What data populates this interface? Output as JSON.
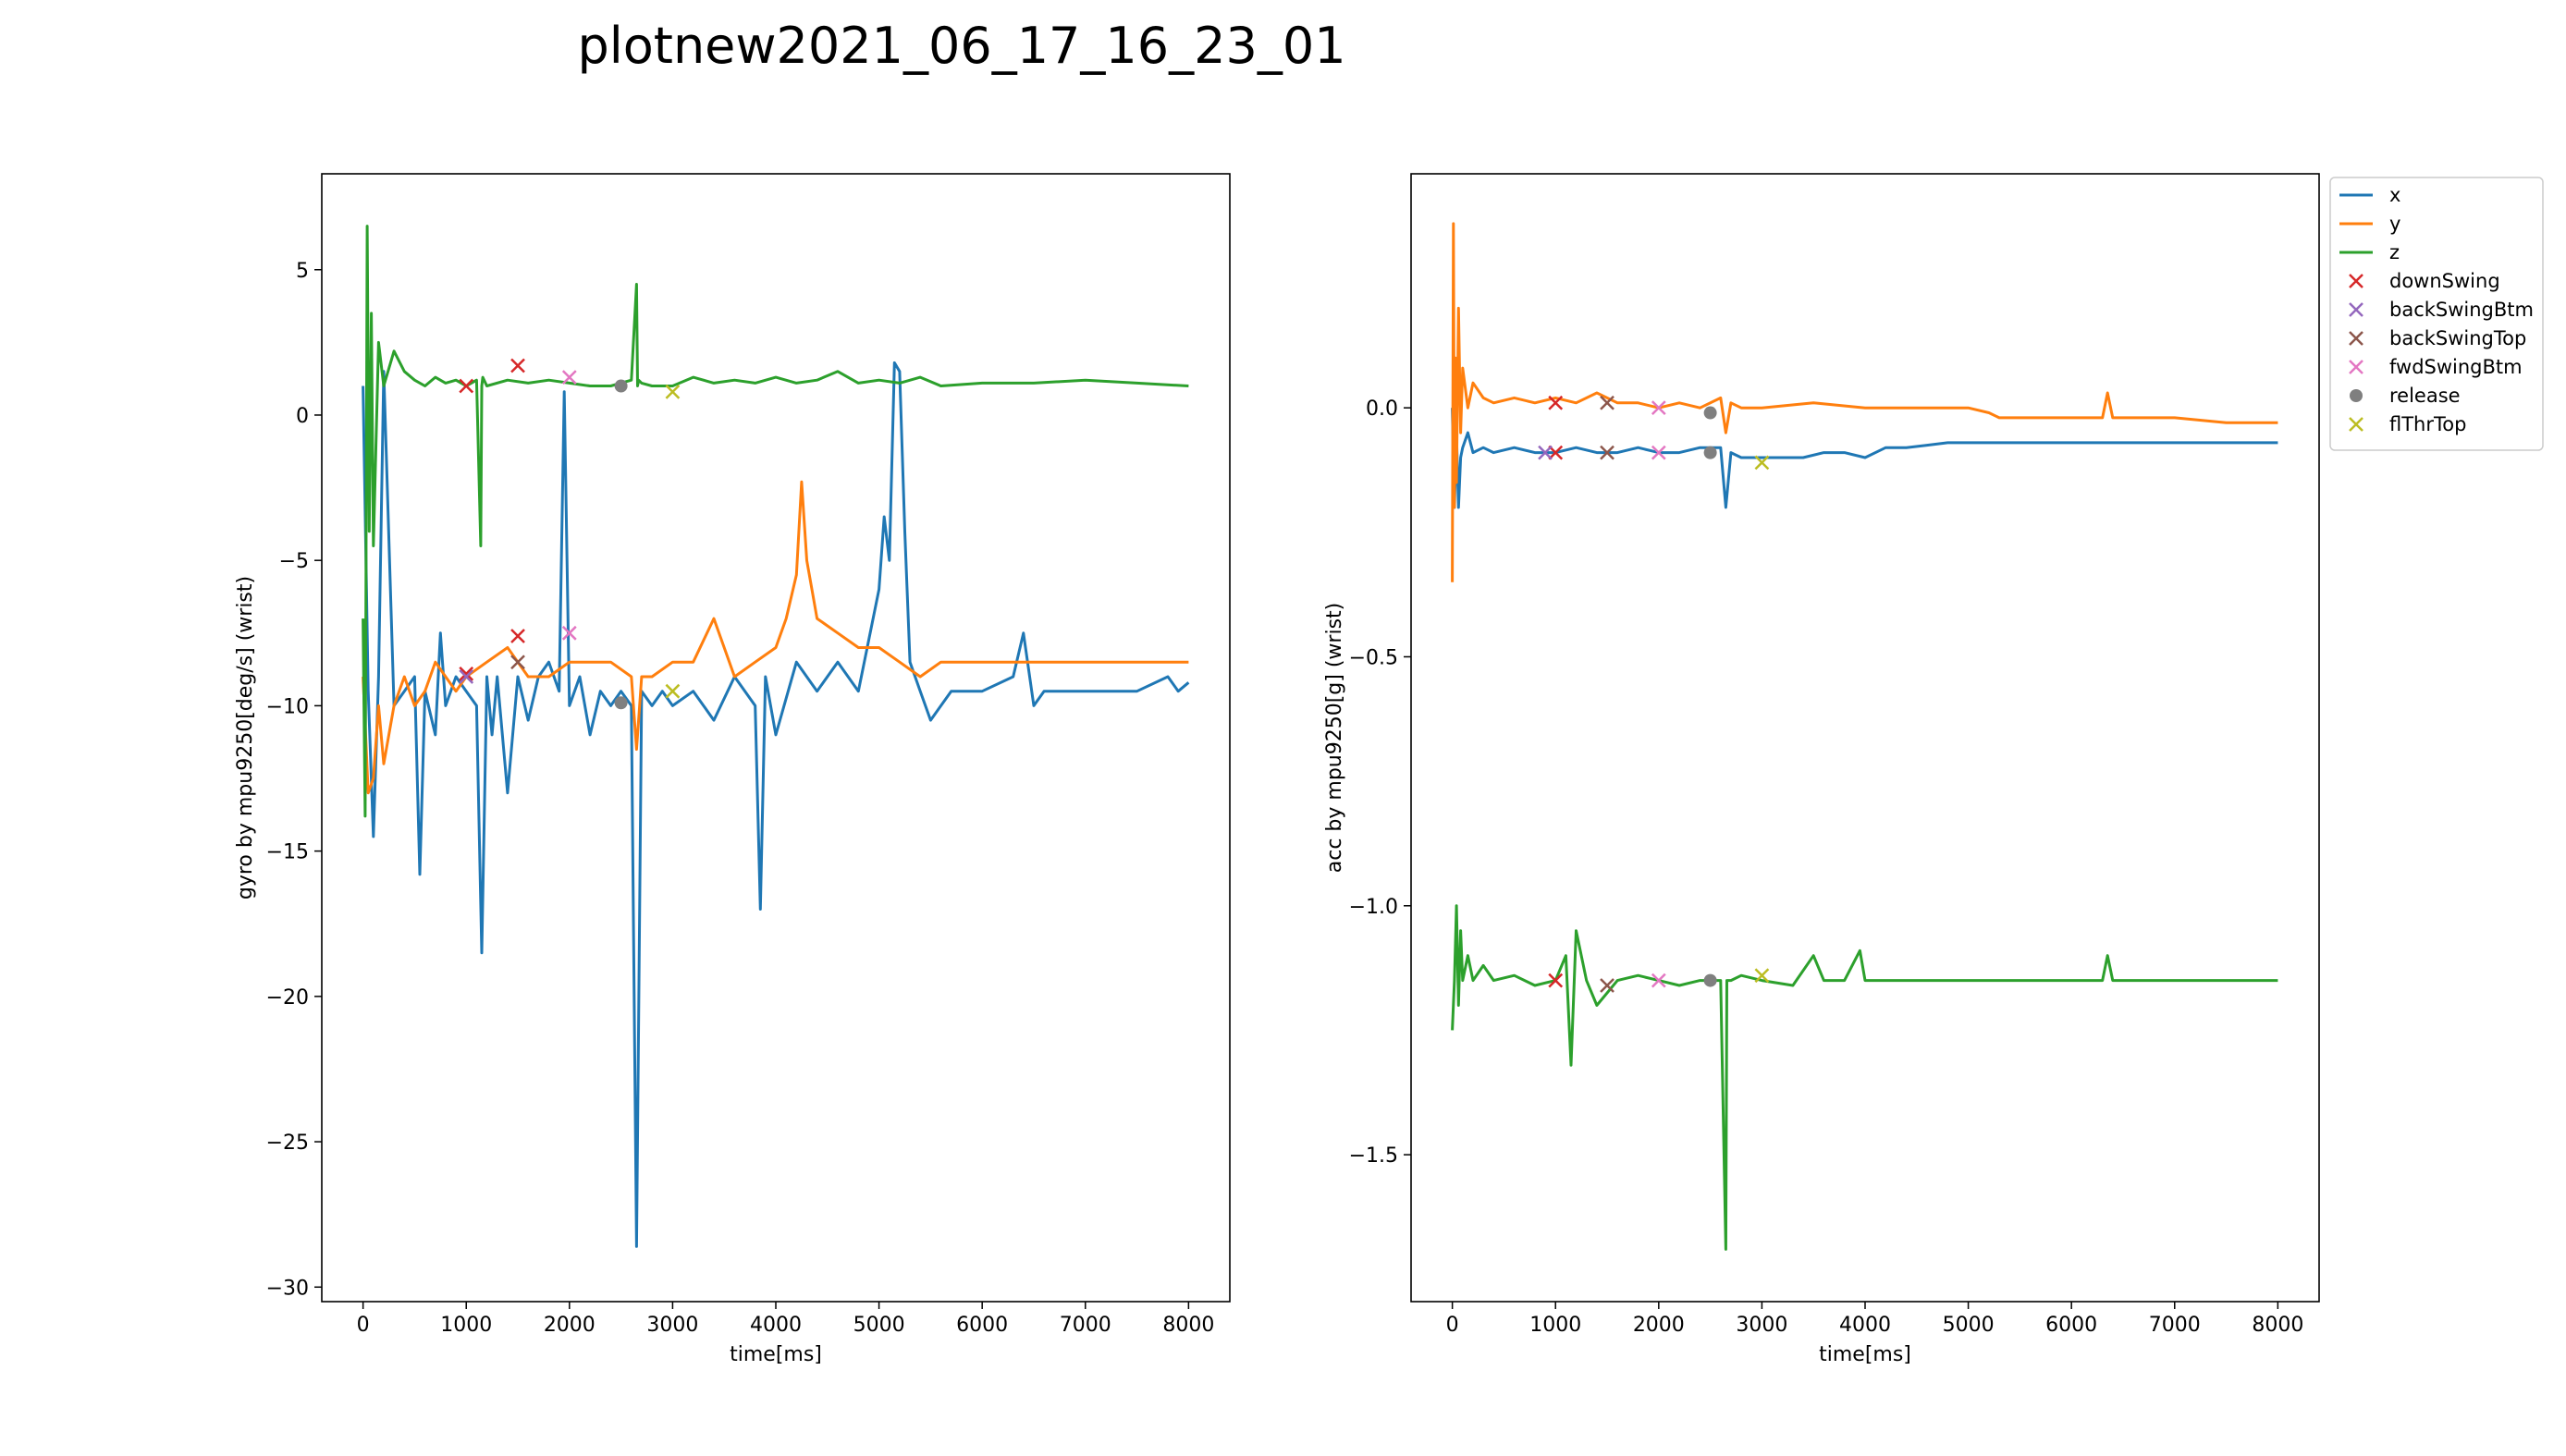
{
  "figure": {
    "title": "plotnew2021_06_17_16_23_01"
  },
  "legend": {
    "placement": "outside-right",
    "entries": [
      {
        "label": "x",
        "kind": "line",
        "color": "#1f77b4"
      },
      {
        "label": "y",
        "kind": "line",
        "color": "#ff7f0e"
      },
      {
        "label": "z",
        "kind": "line",
        "color": "#2ca02c"
      },
      {
        "label": "downSwing",
        "kind": "x",
        "color": "#d62728"
      },
      {
        "label": "backSwingBtm",
        "kind": "x",
        "color": "#9467bd"
      },
      {
        "label": "backSwingTop",
        "kind": "x",
        "color": "#8c564b"
      },
      {
        "label": "fwdSwingBtm",
        "kind": "x",
        "color": "#e377c2"
      },
      {
        "label": "release",
        "kind": "dot",
        "color": "#7f7f7f"
      },
      {
        "label": "flThrTop",
        "kind": "x",
        "color": "#bcbd22"
      }
    ]
  },
  "chart_data": [
    {
      "type": "line",
      "xlabel": "time[ms]",
      "ylabel": "gyro by mpu9250[deg/s] (wrist)",
      "xlim": [
        -400,
        8400
      ],
      "ylim": [
        -30.5,
        8.3
      ],
      "xticks": [
        0,
        1000,
        2000,
        3000,
        4000,
        5000,
        6000,
        7000,
        8000
      ],
      "yticks": [
        5,
        0,
        -5,
        -10,
        -15,
        -20,
        -25,
        -30
      ],
      "ytick_labels": [
        "5",
        "0",
        "−5",
        "−10",
        "−15",
        "−20",
        "−25",
        "−30"
      ],
      "grid": false,
      "series": [
        {
          "name": "x",
          "color": "#1f77b4",
          "x": [
            0,
            50,
            100,
            150,
            200,
            300,
            400,
            500,
            550,
            600,
            700,
            750,
            800,
            900,
            1000,
            1100,
            1150,
            1200,
            1250,
            1300,
            1400,
            1500,
            1600,
            1700,
            1800,
            1900,
            1950,
            2000,
            2100,
            2200,
            2300,
            2400,
            2500,
            2600,
            2650,
            2700,
            2800,
            2900,
            3000,
            3200,
            3400,
            3600,
            3800,
            3850,
            3900,
            4000,
            4200,
            4400,
            4600,
            4800,
            5000,
            5050,
            5100,
            5150,
            5200,
            5250,
            5300,
            5400,
            5500,
            5700,
            6000,
            6300,
            6400,
            6500,
            6600,
            6700,
            7000,
            7500,
            7800,
            7900,
            8000
          ],
          "y": [
            1,
            -9.5,
            -14.5,
            -9,
            1.5,
            -10,
            -9.5,
            -9,
            -15.8,
            -9.5,
            -11,
            -7.5,
            -10,
            -9,
            -9.5,
            -10,
            -18.5,
            -9,
            -11,
            -9,
            -13,
            -9,
            -10.5,
            -9,
            -8.5,
            -9.5,
            0.8,
            -10,
            -9,
            -11,
            -9.5,
            -10,
            -9.5,
            -10,
            -28.6,
            -9.5,
            -10,
            -9.5,
            -10,
            -9.5,
            -10.5,
            -9,
            -10,
            -17,
            -9,
            -11,
            -8.5,
            -9.5,
            -8.5,
            -9.5,
            -6,
            -3.5,
            -5,
            1.8,
            1.5,
            -4,
            -8.5,
            -9.5,
            -10.5,
            -9.5,
            -9.5,
            -9,
            -7.5,
            -10,
            -9.5,
            -9.5,
            -9.5,
            -9.5,
            -9,
            -9.5,
            -9.2
          ]
        },
        {
          "name": "y",
          "color": "#ff7f0e",
          "x": [
            0,
            50,
            100,
            150,
            200,
            300,
            400,
            500,
            600,
            700,
            800,
            900,
            1000,
            1200,
            1400,
            1600,
            1800,
            2000,
            2200,
            2400,
            2600,
            2650,
            2700,
            2800,
            3000,
            3200,
            3400,
            3600,
            3800,
            4000,
            4100,
            4200,
            4250,
            4300,
            4400,
            4600,
            4800,
            5000,
            5200,
            5400,
            5600,
            5800,
            6000,
            6500,
            7000,
            7500,
            7800,
            8000
          ],
          "y": [
            -9,
            -13,
            -12.5,
            -10,
            -12,
            -10,
            -9,
            -10,
            -9.5,
            -8.5,
            -9,
            -9.5,
            -9,
            -8.5,
            -8,
            -9,
            -9,
            -8.5,
            -8.5,
            -8.5,
            -9,
            -11.5,
            -9,
            -9,
            -8.5,
            -8.5,
            -7,
            -9,
            -8.5,
            -8,
            -7,
            -5.5,
            -2.3,
            -5,
            -7,
            -7.5,
            -8,
            -8,
            -8.5,
            -9,
            -8.5,
            -8.5,
            -8.5,
            -8.5,
            -8.5,
            -8.5,
            -8.5,
            -8.5
          ]
        },
        {
          "name": "z",
          "color": "#2ca02c",
          "x": [
            0,
            20,
            40,
            60,
            80,
            100,
            150,
            200,
            300,
            400,
            500,
            600,
            700,
            800,
            900,
            1000,
            1100,
            1140,
            1150,
            1160,
            1200,
            1400,
            1600,
            1800,
            2000,
            2200,
            2400,
            2600,
            2650,
            2660,
            2670,
            2700,
            2800,
            3000,
            3200,
            3400,
            3600,
            3800,
            4000,
            4200,
            4400,
            4600,
            4800,
            5000,
            5200,
            5400,
            5600,
            6000,
            6500,
            7000,
            7500,
            8000
          ],
          "y": [
            -7,
            -13.8,
            6.5,
            -4,
            3.5,
            -4.5,
            2.5,
            1,
            2.2,
            1.5,
            1.2,
            1,
            1.3,
            1.1,
            1.2,
            1,
            1.2,
            -4.5,
            1,
            1.3,
            1,
            1.2,
            1.1,
            1.2,
            1.1,
            1,
            1,
            1.2,
            4.5,
            1,
            1.2,
            1.1,
            1,
            1,
            1.3,
            1.1,
            1.2,
            1.1,
            1.3,
            1.1,
            1.2,
            1.5,
            1.1,
            1.2,
            1.1,
            1.3,
            1,
            1.1,
            1.1,
            1.2,
            1.1,
            1
          ]
        }
      ],
      "markers": [
        {
          "label": "downSwing",
          "points": [
            [
              1000,
              1
            ],
            [
              1000,
              -8.9
            ],
            [
              1500,
              1.7
            ],
            [
              1500,
              -7.6
            ]
          ]
        },
        {
          "label": "backSwingBtm",
          "points": [
            [
              1000,
              -9
            ]
          ]
        },
        {
          "label": "backSwingTop",
          "points": [
            [
              1500,
              -8.5
            ]
          ]
        },
        {
          "label": "fwdSwingBtm",
          "points": [
            [
              2000,
              1.3
            ],
            [
              2000,
              -7.5
            ]
          ]
        },
        {
          "label": "release",
          "points": [
            [
              2500,
              1
            ],
            [
              2500,
              -9.9
            ]
          ]
        },
        {
          "label": "flThrTop",
          "points": [
            [
              3000,
              0.8
            ],
            [
              3000,
              -9.5
            ]
          ]
        }
      ]
    },
    {
      "type": "line",
      "xlabel": "time[ms]",
      "ylabel": "acc by mpu9250[g] (wrist)",
      "xlim": [
        -400,
        8400
      ],
      "ylim": [
        -1.795,
        0.47
      ],
      "xticks": [
        0,
        1000,
        2000,
        3000,
        4000,
        5000,
        6000,
        7000,
        8000
      ],
      "yticks": [
        0,
        -0.5,
        -1,
        -1.5
      ],
      "ytick_labels": [
        "0.0",
        "−0.5",
        "−1.0",
        "−1.5"
      ],
      "grid": false,
      "series": [
        {
          "name": "x",
          "color": "#1f77b4",
          "x": [
            0,
            20,
            40,
            60,
            80,
            100,
            150,
            200,
            300,
            400,
            600,
            800,
            1000,
            1200,
            1400,
            1600,
            1800,
            2000,
            2200,
            2400,
            2600,
            2650,
            2700,
            2800,
            3000,
            3200,
            3400,
            3600,
            3800,
            4000,
            4200,
            4400,
            4600,
            4800,
            5000,
            6000,
            7000,
            8000
          ],
          "y": [
            0,
            -0.2,
            -0.05,
            -0.2,
            -0.1,
            -0.08,
            -0.05,
            -0.09,
            -0.08,
            -0.09,
            -0.08,
            -0.09,
            -0.09,
            -0.08,
            -0.09,
            -0.09,
            -0.08,
            -0.09,
            -0.09,
            -0.08,
            -0.08,
            -0.2,
            -0.09,
            -0.1,
            -0.1,
            -0.1,
            -0.1,
            -0.09,
            -0.09,
            -0.1,
            -0.08,
            -0.08,
            -0.075,
            -0.07,
            -0.07,
            -0.07,
            -0.07,
            -0.07
          ]
        },
        {
          "name": "y",
          "color": "#ff7f0e",
          "x": [
            0,
            10,
            20,
            30,
            40,
            60,
            80,
            100,
            150,
            200,
            300,
            400,
            600,
            800,
            1000,
            1200,
            1400,
            1600,
            1800,
            2000,
            2200,
            2400,
            2600,
            2650,
            2700,
            2800,
            3000,
            3500,
            4000,
            4500,
            5000,
            5200,
            5300,
            5500,
            6000,
            6300,
            6350,
            6400,
            7000,
            7500,
            8000
          ],
          "y": [
            -0.35,
            0.37,
            -0.2,
            0.1,
            -0.15,
            0.2,
            -0.05,
            0.08,
            0,
            0.05,
            0.02,
            0.01,
            0.02,
            0.01,
            0.02,
            0.01,
            0.03,
            0.01,
            0.01,
            0,
            0.01,
            0,
            0.02,
            -0.05,
            0.01,
            0,
            0,
            0.01,
            0,
            0,
            0,
            -0.01,
            -0.02,
            -0.02,
            -0.02,
            -0.02,
            0.03,
            -0.02,
            -0.02,
            -0.03,
            -0.03
          ]
        },
        {
          "name": "z",
          "color": "#2ca02c",
          "x": [
            0,
            20,
            40,
            60,
            80,
            100,
            150,
            200,
            300,
            400,
            600,
            800,
            1000,
            1100,
            1150,
            1200,
            1300,
            1400,
            1600,
            1800,
            2000,
            2200,
            2400,
            2600,
            2650,
            2660,
            2700,
            2800,
            3000,
            3300,
            3500,
            3600,
            3800,
            3950,
            4000,
            4500,
            5000,
            6000,
            6300,
            6350,
            6400,
            7000,
            8000
          ],
          "y": [
            -1.25,
            -1.15,
            -1.0,
            -1.2,
            -1.05,
            -1.15,
            -1.1,
            -1.15,
            -1.12,
            -1.15,
            -1.14,
            -1.16,
            -1.15,
            -1.1,
            -1.32,
            -1.05,
            -1.15,
            -1.2,
            -1.15,
            -1.14,
            -1.15,
            -1.16,
            -1.15,
            -1.15,
            -1.69,
            -1.15,
            -1.15,
            -1.14,
            -1.15,
            -1.16,
            -1.1,
            -1.15,
            -1.15,
            -1.09,
            -1.15,
            -1.15,
            -1.15,
            -1.15,
            -1.15,
            -1.1,
            -1.15,
            -1.15,
            -1.15
          ]
        }
      ],
      "markers": [
        {
          "label": "downSwing",
          "points": [
            [
              1000,
              0.01
            ],
            [
              1000,
              -0.09
            ],
            [
              1000,
              -1.15
            ]
          ]
        },
        {
          "label": "backSwingBtm",
          "points": [
            [
              900,
              -0.09
            ]
          ]
        },
        {
          "label": "backSwingTop",
          "points": [
            [
              1500,
              0.01
            ],
            [
              1500,
              -0.09
            ],
            [
              1500,
              -1.16
            ]
          ]
        },
        {
          "label": "fwdSwingBtm",
          "points": [
            [
              2000,
              0
            ],
            [
              2000,
              -0.09
            ],
            [
              2000,
              -1.15
            ]
          ]
        },
        {
          "label": "release",
          "points": [
            [
              2500,
              -0.01
            ],
            [
              2500,
              -0.09
            ],
            [
              2500,
              -1.15
            ]
          ]
        },
        {
          "label": "flThrTop",
          "points": [
            [
              3000,
              -0.11
            ],
            [
              3000,
              -1.14
            ]
          ]
        }
      ]
    }
  ]
}
